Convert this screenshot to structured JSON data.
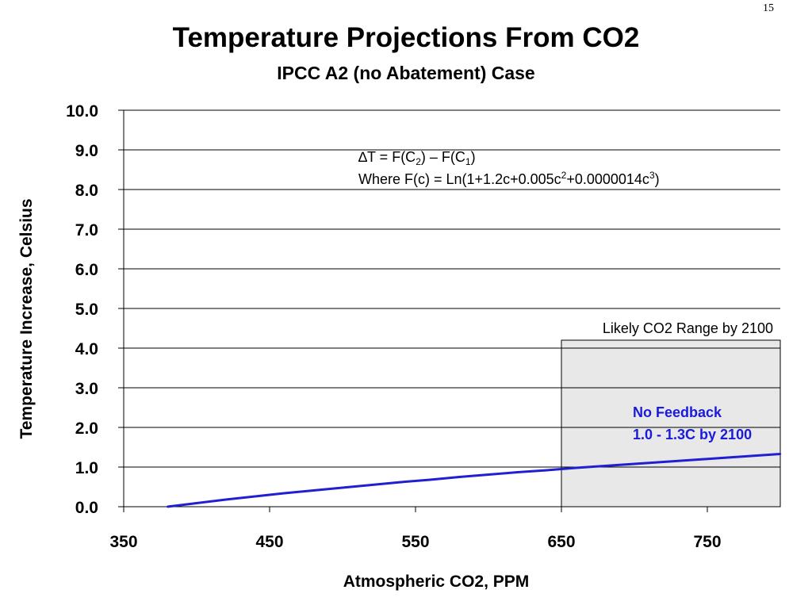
{
  "slide_number": "15",
  "colors": {
    "series": "#2020d0",
    "feedback_text": "#1a1adc",
    "range_fill": "#e8e8e8"
  },
  "formula": {
    "line1": {
      "prefix": "∆T = F(C",
      "sub1": "2",
      "mid": ") – F(C",
      "sub2": "1",
      "suffix": ")"
    },
    "line2": {
      "prefix": "Where F(c) = Ln(1+1.2c+0.005c",
      "sup1": "2",
      "mid": "+0.0000014c",
      "sup2": "3",
      "suffix": ")"
    }
  },
  "range_annotation": "Likely CO2 Range by 2100",
  "feedback_label": {
    "line1": "No Feedback",
    "line2": "1.0 - 1.3C by 2100"
  },
  "chart_data": {
    "type": "line",
    "title": "Temperature Projections From CO2",
    "subtitle": "IPCC A2 (no Abatement) Case",
    "xlabel": "Atmospheric CO2, PPM",
    "ylabel": "Temperature Increase, Celsius",
    "xlim": [
      350,
      800
    ],
    "ylim": [
      0,
      10
    ],
    "xticks": [
      350,
      450,
      550,
      650,
      750
    ],
    "xtick_labels": [
      "350",
      "450",
      "550",
      "650",
      "750"
    ],
    "yticks": [
      0,
      1,
      2,
      3,
      4,
      5,
      6,
      7,
      8,
      9,
      10
    ],
    "ytick_labels": [
      "0.0",
      "1.0",
      "2.0",
      "3.0",
      "4.0",
      "5.0",
      "6.0",
      "7.0",
      "8.0",
      "9.0",
      "10.0"
    ],
    "grid": true,
    "shaded_range": {
      "x": [
        650,
        800
      ],
      "y": [
        0,
        4.2
      ],
      "label": "Likely CO2 Range by 2100"
    },
    "series": [
      {
        "x": [
          380,
          400,
          420,
          440,
          460,
          480,
          500,
          520,
          540,
          560,
          580,
          600,
          620,
          640,
          650,
          660,
          680,
          700,
          720,
          740,
          760,
          780,
          800
        ],
        "values": [
          0.0,
          0.09,
          0.18,
          0.26,
          0.34,
          0.41,
          0.48,
          0.55,
          0.62,
          0.68,
          0.75,
          0.81,
          0.87,
          0.92,
          0.95,
          0.98,
          1.03,
          1.08,
          1.13,
          1.18,
          1.23,
          1.28,
          1.33
        ]
      }
    ]
  }
}
